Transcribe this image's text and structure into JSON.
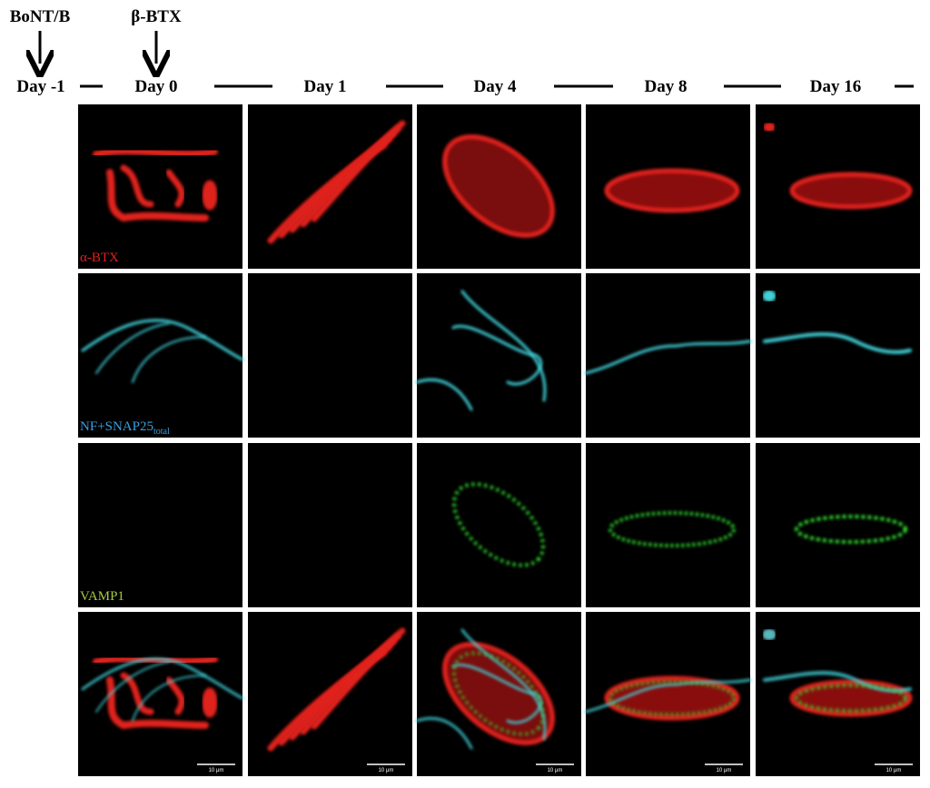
{
  "annotations": [
    {
      "label": "BoNT/B"
    },
    {
      "label": "β-BTX"
    }
  ],
  "timeline": [
    "Day -1",
    "Day 0",
    "Day 1",
    "Day 4",
    "Day 8",
    "Day 16"
  ],
  "rows": [
    {
      "label": "α-BTX"
    },
    {
      "label": "NF+SNAP25",
      "subscript": "total"
    },
    {
      "label": "VAMP1"
    }
  ],
  "scale_bar": "10 μm"
}
